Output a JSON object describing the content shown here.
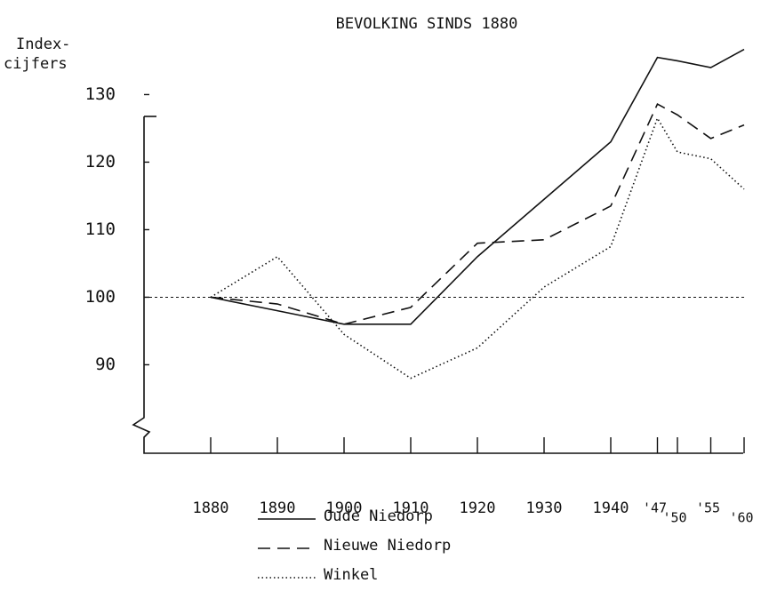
{
  "chart_data": {
    "type": "line",
    "title": "BEVOLKING SINDS 1880",
    "ylabel": [
      "Index-",
      "cijfers"
    ],
    "x": [
      1880,
      1890,
      1900,
      1910,
      1920,
      1930,
      1940,
      1947,
      1950,
      1955,
      1960
    ],
    "series": [
      {
        "name": "Oude Niedorp",
        "color": "#111111",
        "dash": "solid",
        "values": [
          100,
          98,
          96,
          96,
          106,
          114.5,
          123,
          135.5,
          135,
          134,
          136.7
        ]
      },
      {
        "name": "Nieuwe Niedorp",
        "color": "#111111",
        "dash": "dashed",
        "values": [
          100,
          99,
          96,
          98.5,
          108,
          108.5,
          113.5,
          128.6,
          127,
          123.5,
          125.5
        ]
      },
      {
        "name": "Winkel",
        "color": "#111111",
        "dash": "dotted",
        "values": [
          100,
          106,
          94.5,
          88,
          92.5,
          101.5,
          107.5,
          126.5,
          121.5,
          120.5,
          116
        ]
      }
    ],
    "reference_line": 100,
    "xlim": [
      1870,
      1960
    ],
    "ylim": [
      76.9,
      138
    ],
    "xticks": [
      1880,
      1890,
      1900,
      1910,
      1920,
      1930,
      1940,
      {
        "value": 1947,
        "label": "'47"
      },
      {
        "value": 1950,
        "label": "'50"
      },
      {
        "value": 1955,
        "label": "'55"
      },
      {
        "value": 1960,
        "label": "'60"
      }
    ],
    "yticks": [
      90,
      100,
      110,
      120,
      130
    ],
    "legend": "bottom"
  }
}
